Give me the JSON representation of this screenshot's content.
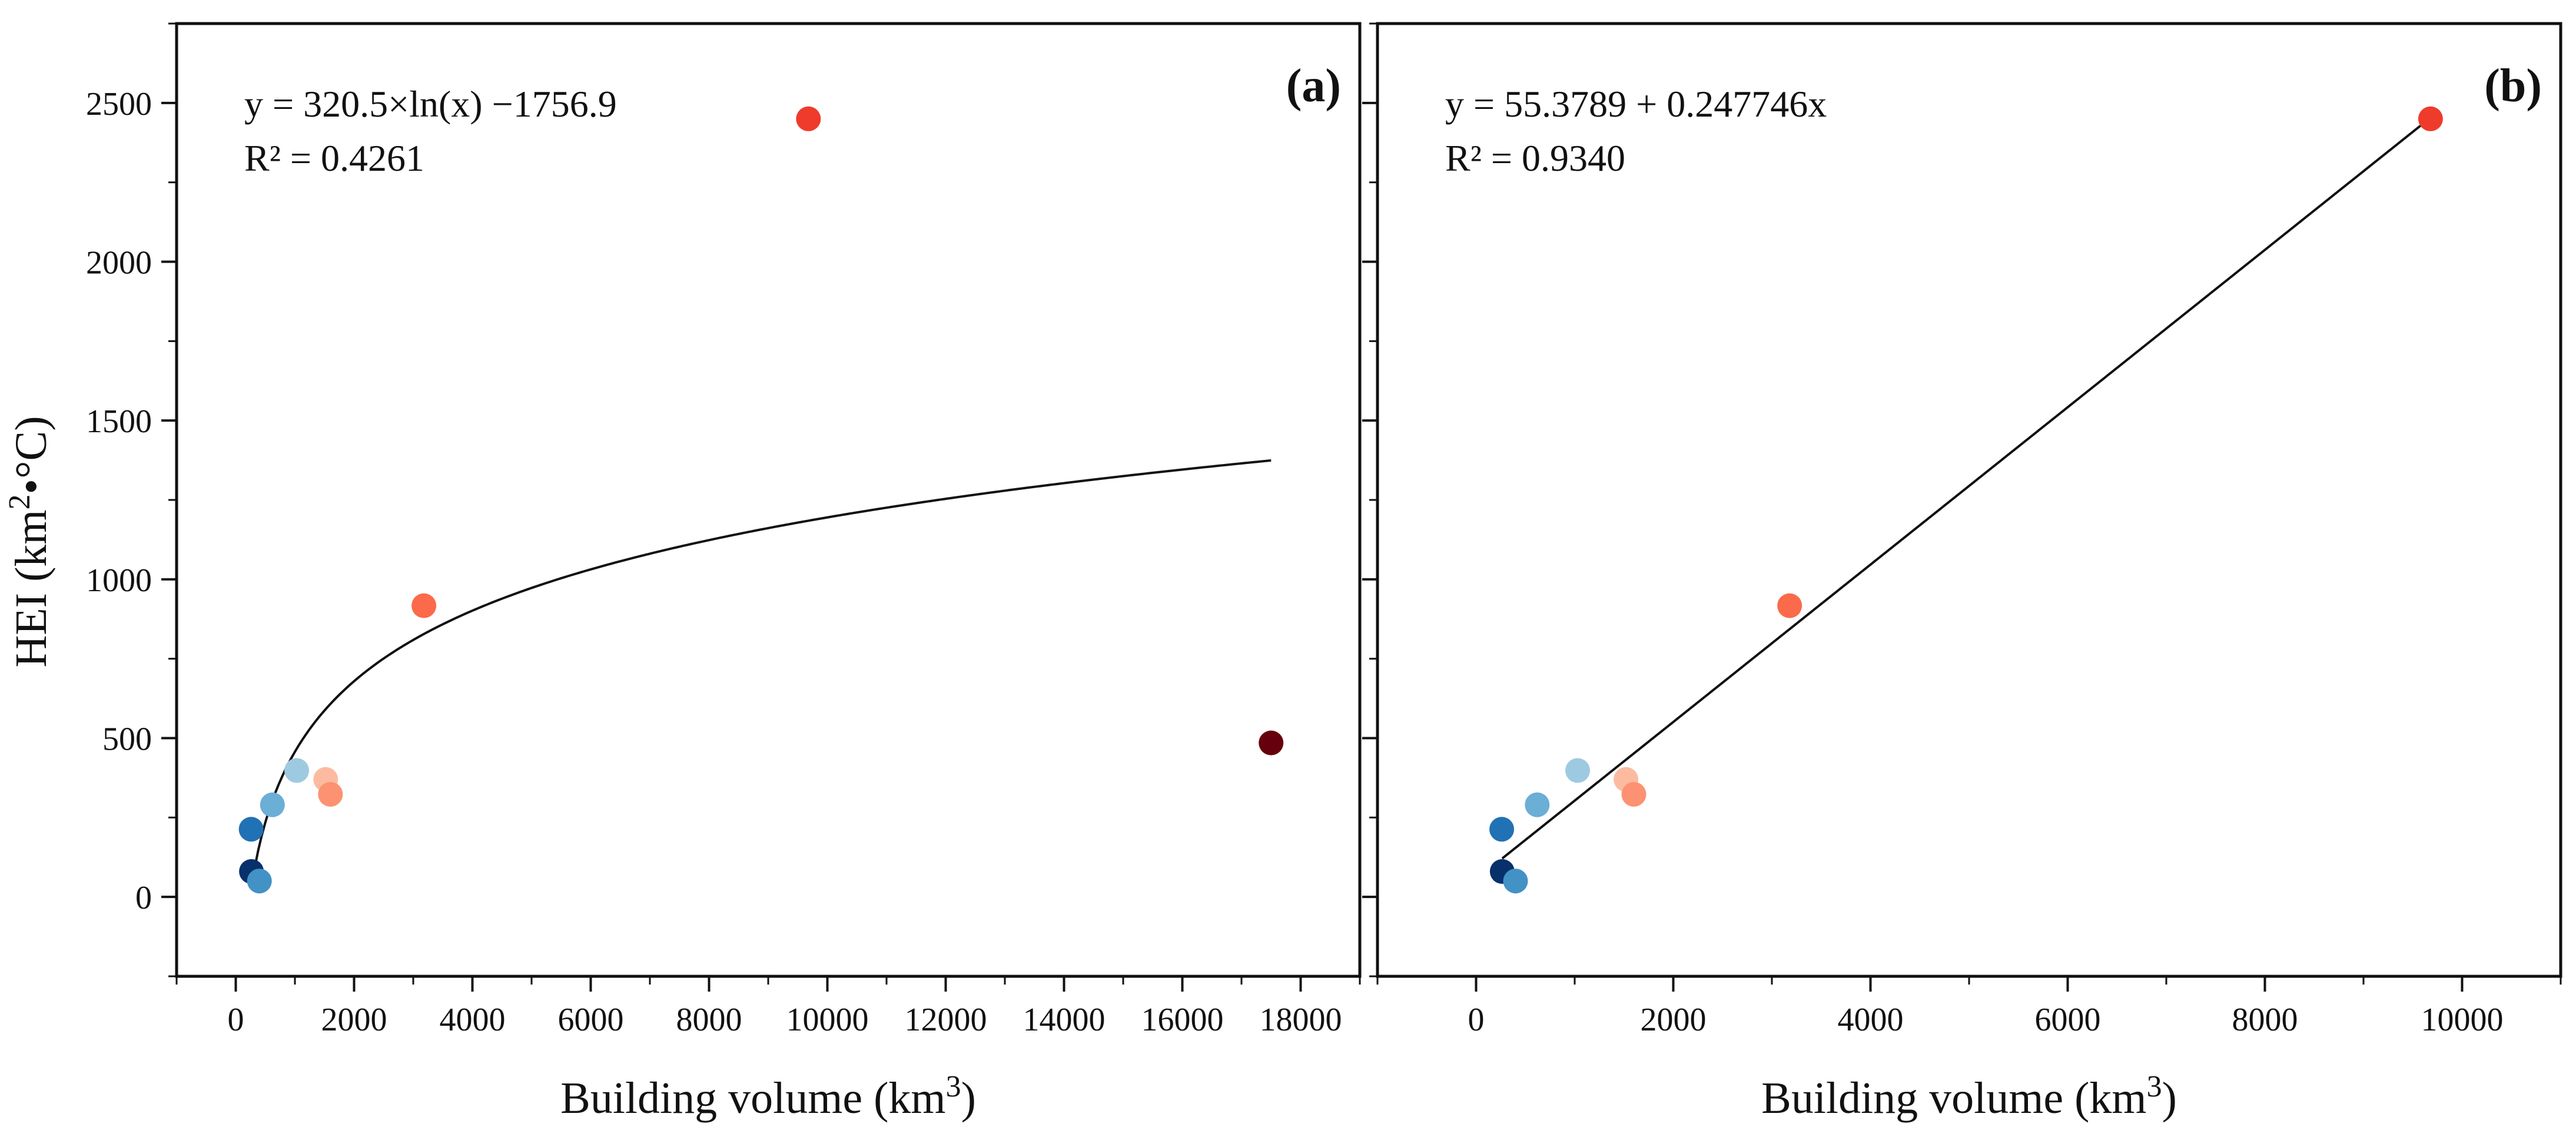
{
  "chart_data": [
    {
      "type": "scatter",
      "panel_label": "(a)",
      "xlabel": {
        "text": "Building volume (km",
        "sup": "3",
        "suffix": ")"
      },
      "ylabel": {
        "text": "HEI (km",
        "sup": "2",
        "suffix": "•°C)"
      },
      "xlim": [
        -1000,
        19000
      ],
      "ylim": [
        -250,
        2750
      ],
      "xticks": [
        0,
        2000,
        4000,
        6000,
        8000,
        10000,
        12000,
        14000,
        16000,
        18000
      ],
      "xtick_labels": [
        "0",
        "2000",
        "4000",
        "6000",
        "8000",
        "10000",
        "12000",
        "14000",
        "16000",
        "18000"
      ],
      "yticks": [
        0,
        500,
        1000,
        1500,
        2000,
        2500
      ],
      "ytick_labels": [
        "0",
        "500",
        "1000",
        "1500",
        "2000",
        "2500"
      ],
      "equation": "y = 320.5×ln(x) −1756.9",
      "r2": "R² = 0.4261",
      "fit": {
        "kind": "log",
        "a": 320.5,
        "b": -1756.9,
        "x_range": [
          265,
          17500
        ]
      },
      "points": [
        {
          "x": 265,
          "y": 80,
          "color": "#08306b"
        },
        {
          "x": 260,
          "y": 213,
          "color": "#2171b5"
        },
        {
          "x": 400,
          "y": 50,
          "color": "#4292c6"
        },
        {
          "x": 620,
          "y": 290,
          "color": "#6baed6"
        },
        {
          "x": 1030,
          "y": 398,
          "color": "#9ecae1"
        },
        {
          "x": 1520,
          "y": 370,
          "color": "#fcbba1"
        },
        {
          "x": 1600,
          "y": 323,
          "color": "#fc9272"
        },
        {
          "x": 3180,
          "y": 917,
          "color": "#fb6a4a"
        },
        {
          "x": 9680,
          "y": 2450,
          "color": "#ef3b2c"
        },
        {
          "x": 17500,
          "y": 485,
          "color": "#67000d"
        }
      ]
    },
    {
      "type": "scatter",
      "panel_label": "(b)",
      "xlabel": {
        "text": "Building volume (km",
        "sup": "3",
        "suffix": ")"
      },
      "ylabel": null,
      "xlim": [
        -1000,
        11000
      ],
      "ylim": [
        -250,
        2750
      ],
      "xticks": [
        0,
        2000,
        4000,
        6000,
        8000,
        10000
      ],
      "xtick_labels": [
        "0",
        "2000",
        "4000",
        "6000",
        "8000",
        "10000"
      ],
      "yticks": [
        0,
        500,
        1000,
        1500,
        2000,
        2500
      ],
      "ytick_labels": [],
      "equation": "y = 55.3789 + 0.247746x",
      "r2": "R² = 0.9340",
      "fit": {
        "kind": "linear",
        "a": 0.247746,
        "b": 55.3789,
        "x_range": [
          265,
          9680
        ]
      },
      "points": [
        {
          "x": 265,
          "y": 80,
          "color": "#08306b"
        },
        {
          "x": 260,
          "y": 213,
          "color": "#2171b5"
        },
        {
          "x": 400,
          "y": 50,
          "color": "#4292c6"
        },
        {
          "x": 620,
          "y": 290,
          "color": "#6baed6"
        },
        {
          "x": 1030,
          "y": 398,
          "color": "#9ecae1"
        },
        {
          "x": 1520,
          "y": 370,
          "color": "#fcbba1"
        },
        {
          "x": 1600,
          "y": 323,
          "color": "#fc9272"
        },
        {
          "x": 3180,
          "y": 917,
          "color": "#fb6a4a"
        },
        {
          "x": 9680,
          "y": 2450,
          "color": "#ef3b2c"
        }
      ]
    }
  ]
}
